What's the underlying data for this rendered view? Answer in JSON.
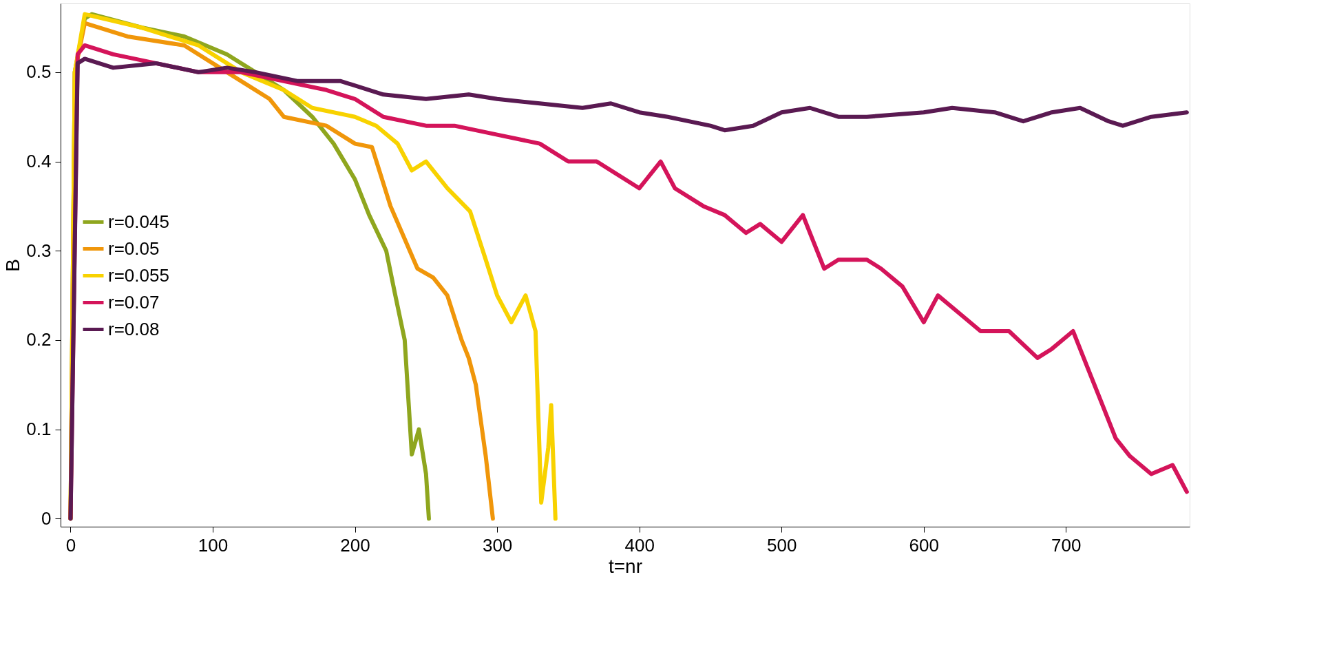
{
  "chart_data": {
    "type": "line",
    "xlabel": "t=nr",
    "ylabel": "B",
    "xlim": [
      -7,
      787
    ],
    "ylim": [
      -0.009,
      0.577
    ],
    "xticks": [
      0,
      100,
      200,
      300,
      400,
      500,
      600,
      700
    ],
    "yticks": [
      {
        "value": 0,
        "label": "0"
      },
      0.1,
      0.2,
      0.3,
      0.4,
      0.5
    ],
    "grid": false,
    "legend": "left",
    "line_style": "solid",
    "marker": "none",
    "series": [
      {
        "name": "r=0.045",
        "color": "#8fa61e",
        "x": [
          0,
          3,
          10,
          15,
          50,
          80,
          110,
          130,
          150,
          170,
          185,
          200,
          210,
          222,
          228,
          235,
          240,
          245,
          250,
          252
        ],
        "values": [
          0,
          0.5,
          0.56,
          0.565,
          0.55,
          0.54,
          0.52,
          0.5,
          0.48,
          0.45,
          0.42,
          0.38,
          0.34,
          0.3,
          0.253,
          0.2,
          0.072,
          0.1,
          0.05,
          0
        ]
      },
      {
        "name": "r=0.05",
        "color": "#f0960a",
        "x": [
          0,
          3,
          10,
          40,
          80,
          110,
          140,
          150,
          180,
          200,
          212,
          225,
          244,
          255,
          265,
          275,
          280,
          285,
          292,
          297
        ],
        "values": [
          0,
          0.5,
          0.555,
          0.54,
          0.53,
          0.5,
          0.47,
          0.45,
          0.44,
          0.42,
          0.416,
          0.35,
          0.28,
          0.27,
          0.25,
          0.2,
          0.18,
          0.15,
          0.07,
          0
        ]
      },
      {
        "name": "r=0.055",
        "color": "#f8d200",
        "x": [
          0,
          3,
          10,
          50,
          90,
          110,
          120,
          150,
          170,
          200,
          215,
          230,
          240,
          250,
          265,
          281,
          292,
          300,
          310,
          320,
          327,
          331,
          336,
          338,
          341
        ],
        "values": [
          0,
          0.5,
          0.565,
          0.55,
          0.53,
          0.51,
          0.5,
          0.48,
          0.46,
          0.45,
          0.44,
          0.42,
          0.39,
          0.4,
          0.37,
          0.344,
          0.29,
          0.25,
          0.22,
          0.25,
          0.21,
          0.018,
          0.08,
          0.127,
          0
        ]
      },
      {
        "name": "r=0.07",
        "color": "#d4145a",
        "x": [
          0,
          5,
          10,
          30,
          60,
          90,
          120,
          150,
          180,
          200,
          220,
          250,
          270,
          300,
          330,
          350,
          370,
          390,
          400,
          405,
          415,
          425,
          445,
          460,
          475,
          485,
          500,
          510,
          515,
          520,
          530,
          540,
          560,
          570,
          585,
          600,
          610,
          625,
          640,
          660,
          680,
          690,
          705,
          715,
          725,
          735,
          745,
          760,
          775,
          785
        ],
        "values": [
          0,
          0.52,
          0.53,
          0.52,
          0.51,
          0.5,
          0.5,
          0.49,
          0.48,
          0.47,
          0.45,
          0.44,
          0.44,
          0.43,
          0.42,
          0.4,
          0.4,
          0.38,
          0.37,
          0.38,
          0.4,
          0.37,
          0.35,
          0.34,
          0.32,
          0.33,
          0.31,
          0.33,
          0.34,
          0.32,
          0.28,
          0.29,
          0.29,
          0.28,
          0.26,
          0.22,
          0.25,
          0.23,
          0.21,
          0.21,
          0.18,
          0.19,
          0.21,
          0.17,
          0.13,
          0.09,
          0.07,
          0.05,
          0.06,
          0.03
        ]
      },
      {
        "name": "r=0.08",
        "color": "#5a1a52",
        "x": [
          0,
          5,
          10,
          30,
          60,
          90,
          110,
          130,
          160,
          190,
          220,
          250,
          280,
          300,
          330,
          360,
          380,
          400,
          420,
          450,
          460,
          480,
          500,
          520,
          540,
          560,
          600,
          620,
          650,
          670,
          690,
          710,
          730,
          740,
          760,
          785
        ],
        "values": [
          0,
          0.51,
          0.515,
          0.505,
          0.51,
          0.5,
          0.505,
          0.5,
          0.49,
          0.49,
          0.475,
          0.47,
          0.475,
          0.47,
          0.465,
          0.46,
          0.465,
          0.455,
          0.45,
          0.44,
          0.435,
          0.44,
          0.455,
          0.46,
          0.45,
          0.45,
          0.455,
          0.46,
          0.455,
          0.445,
          0.455,
          0.46,
          0.445,
          0.44,
          0.45,
          0.455
        ]
      }
    ]
  }
}
